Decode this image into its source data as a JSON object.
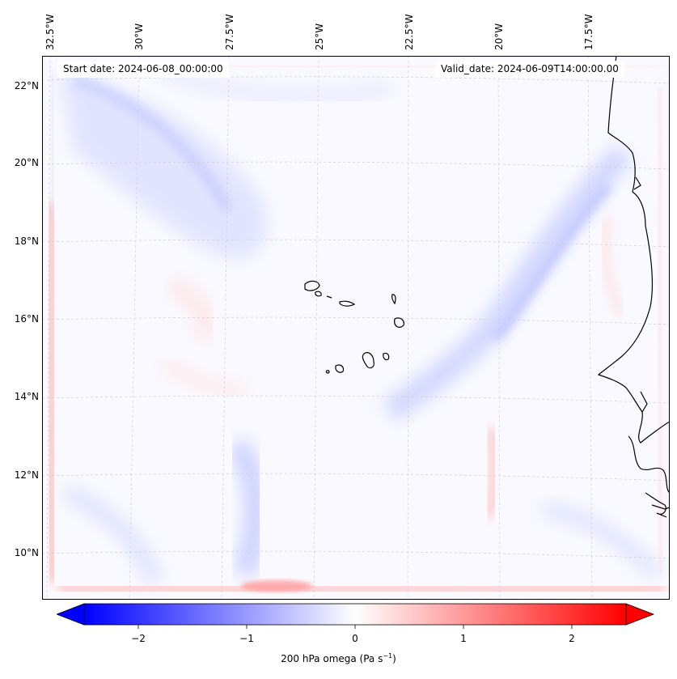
{
  "map": {
    "lon_labels": [
      "32.5°W",
      "30°W",
      "27.5°W",
      "25°W",
      "22.5°W",
      "20°W",
      "17.5°W"
    ],
    "lat_labels": [
      "22°N",
      "20°N",
      "18°N",
      "16°N",
      "14°N",
      "12°N",
      "10°N"
    ],
    "start_date": "Start date: 2024-06-08_00:00:00",
    "valid_date": "Valid_date: 2024-06-09T14:00:00.00",
    "gridlines": true,
    "colormap": "bwr",
    "colors": {
      "negative": "#0000ff",
      "zero": "#ffffff",
      "positive": "#ff0000",
      "coast": "#000000"
    }
  },
  "colorbar": {
    "ticks": [
      "−2",
      "−1",
      "0",
      "1",
      "2"
    ],
    "tick_values": [
      -2,
      -1,
      0,
      1,
      2
    ],
    "vmin": -2.5,
    "vmax": 2.5,
    "label_main": "200 hPa omega (Pa s",
    "label_sup": "−1",
    "label_end": ")"
  }
}
